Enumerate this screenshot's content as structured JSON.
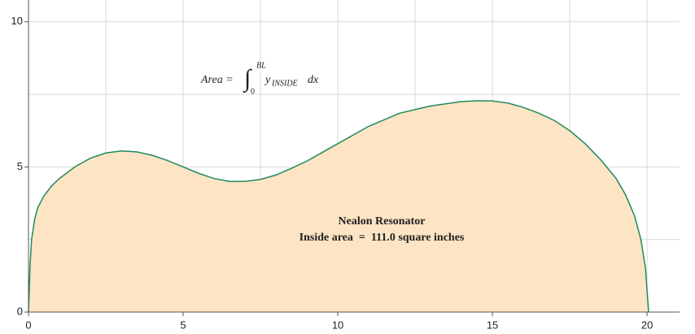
{
  "chart_data": {
    "type": "area",
    "x": [
      0,
      0.05,
      0.1,
      0.2,
      0.3,
      0.5,
      0.75,
      1,
      1.5,
      2,
      2.5,
      3,
      3.5,
      4,
      4.5,
      5,
      5.5,
      6,
      6.5,
      7,
      7.5,
      8,
      8.5,
      9,
      9.5,
      10,
      11,
      12,
      13,
      14,
      14.5,
      15,
      15.5,
      16,
      16.5,
      17,
      17.5,
      18,
      18.5,
      19,
      19.3,
      19.6,
      19.8,
      19.95,
      20.05
    ],
    "values": [
      0,
      1.6,
      2.5,
      3.2,
      3.6,
      4.0,
      4.35,
      4.6,
      5.0,
      5.3,
      5.48,
      5.55,
      5.52,
      5.4,
      5.22,
      5.0,
      4.78,
      4.6,
      4.5,
      4.5,
      4.57,
      4.72,
      4.95,
      5.2,
      5.5,
      5.8,
      6.4,
      6.85,
      7.1,
      7.25,
      7.28,
      7.27,
      7.2,
      7.05,
      6.85,
      6.6,
      6.25,
      5.8,
      5.25,
      4.6,
      4.05,
      3.3,
      2.5,
      1.5,
      0
    ],
    "color": "#fce4c4",
    "line_color": "#1f8a5c",
    "xlim": [
      0,
      21.05
    ],
    "ylim": [
      0,
      10.75
    ],
    "xticks": [
      0,
      5,
      10,
      15,
      20
    ],
    "yticks": [
      0,
      5,
      10
    ],
    "xgrid": [
      2.5,
      5,
      7.5,
      10,
      12.5,
      15,
      17.5,
      20
    ],
    "ygrid": [
      2.5,
      5,
      7.5,
      10
    ],
    "annotations": {
      "title": "Nealon Resonator",
      "area": "Inside area  =  111.0 square inches",
      "formula": {
        "lhs": "Area =",
        "upper": "BL",
        "lower": "0",
        "integrand": "y",
        "subscript": "INSIDE",
        "differential": "dx"
      }
    }
  }
}
